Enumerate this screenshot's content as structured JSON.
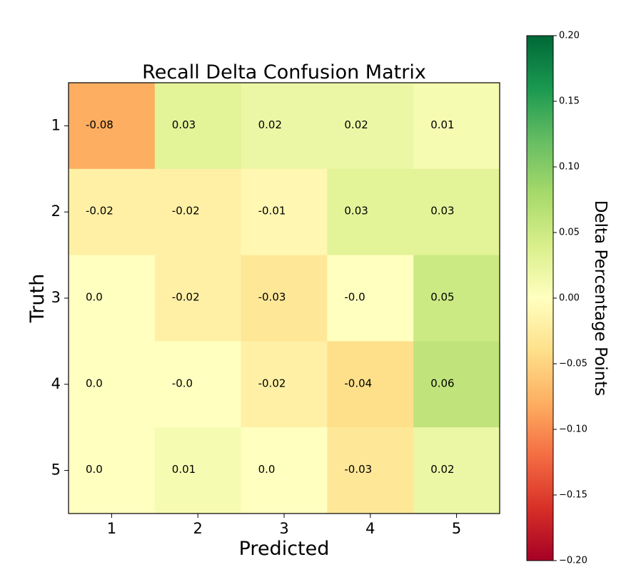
{
  "chart_data": {
    "type": "heatmap",
    "title": "Recall Delta Confusion Matrix",
    "xlabel": "Predicted",
    "ylabel": "Truth",
    "x_categories": [
      "1",
      "2",
      "3",
      "4",
      "5"
    ],
    "y_categories": [
      "1",
      "2",
      "3",
      "4",
      "5"
    ],
    "values": [
      [
        -0.08,
        0.03,
        0.02,
        0.02,
        0.01
      ],
      [
        -0.02,
        -0.02,
        -0.01,
        0.03,
        0.03
      ],
      [
        0.0,
        -0.02,
        -0.03,
        -0.0,
        0.05
      ],
      [
        0.0,
        -0.0,
        -0.02,
        -0.04,
        0.06
      ],
      [
        0.0,
        0.01,
        0.0,
        -0.03,
        0.02
      ]
    ],
    "cell_labels": [
      [
        "-0.08",
        "0.03",
        "0.02",
        "0.02",
        "0.01"
      ],
      [
        "-0.02",
        "-0.02",
        "-0.01",
        "0.03",
        "0.03"
      ],
      [
        "0.0",
        "-0.02",
        "-0.03",
        "-0.0",
        "0.05"
      ],
      [
        "0.0",
        "-0.0",
        "-0.02",
        "-0.04",
        "0.06"
      ],
      [
        "0.0",
        "0.01",
        "0.0",
        "-0.03",
        "0.02"
      ]
    ],
    "colorbar": {
      "label": "Delta Percentage Points",
      "range": [
        -0.2,
        0.2
      ],
      "ticks": [
        "0.20",
        "0.15",
        "0.10",
        "0.05",
        "0.00",
        "−0.05",
        "−0.10",
        "−0.15",
        "−0.20"
      ],
      "tick_values": [
        0.2,
        0.15,
        0.1,
        0.05,
        0.0,
        -0.05,
        -0.1,
        -0.15,
        -0.2
      ],
      "colormap": "RdYlGn",
      "colors": [
        "#a50026",
        "#d73027",
        "#f46d43",
        "#fdae61",
        "#fee08b",
        "#ffffbf",
        "#d9ef8b",
        "#a6d96a",
        "#66bd63",
        "#1a9850",
        "#006837"
      ]
    },
    "grid": false
  }
}
